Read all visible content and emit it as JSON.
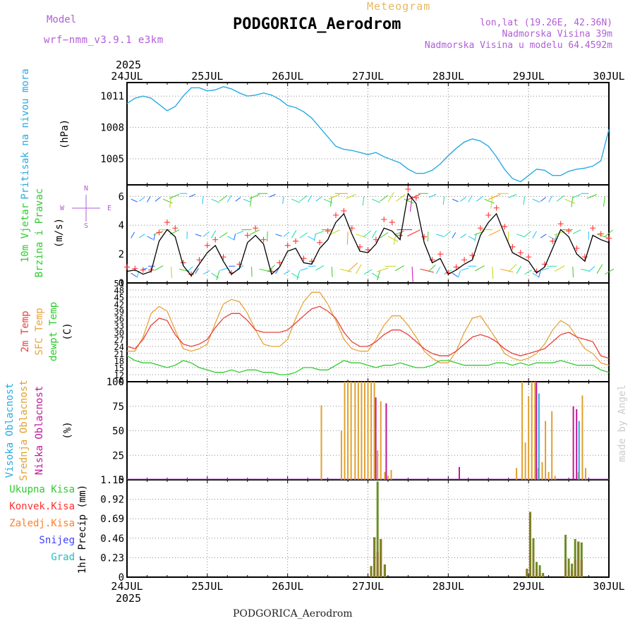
{
  "header": {
    "model_label": "Model",
    "model_name": "wrf−nmm_v3.9.1  e3km",
    "product": "Meteogram",
    "station": "PODGORICA_Aerodrom",
    "lonlat": "lon,lat (19.26E, 42.36N)",
    "elev": "Nadmorska Visina 39m",
    "elev_model": "Nadmorska Visina u modelu 64.4592m"
  },
  "footer": {
    "station": "PODGORICA_Aerodrom",
    "credit": "made by Angel"
  },
  "colors": {
    "pressure": "#29abe2",
    "black": "#000000",
    "temp2m": "#e8413a",
    "sfc": "#e6a43c",
    "dewpt": "#2ecc2e",
    "purple": "#b05ed8",
    "high": "#29abe2",
    "mid": "#e0a030",
    "low": "#c0189a",
    "total": "#2ecc2e",
    "conv": "#ff3030",
    "frozen": "#ff7f27",
    "snow": "#4040ff",
    "hail": "#20c0c0",
    "olive": "#6b8e23",
    "grid": "#888888"
  },
  "chart_data": [
    {
      "type": "line",
      "title": "Pritisak na nivou mora",
      "ylabel": "(hPa)",
      "ylabels": [
        "1011",
        "1008",
        "1005"
      ],
      "yticks": [
        1011,
        1008,
        1005
      ],
      "ylim": [
        1002.5,
        1012.3
      ],
      "x_days": [
        0,
        0.1,
        0.2,
        0.3,
        0.4,
        0.5,
        0.6,
        0.7,
        0.8,
        0.9,
        1,
        1.1,
        1.2,
        1.3,
        1.4,
        1.5,
        1.6,
        1.7,
        1.8,
        1.9,
        2,
        2.1,
        2.2,
        2.3,
        2.4,
        2.5,
        2.6,
        2.7,
        2.8,
        2.9,
        3,
        3.1,
        3.2,
        3.3,
        3.4,
        3.5,
        3.6,
        3.7,
        3.8,
        3.9,
        4,
        4.1,
        4.2,
        4.3,
        4.4,
        4.5,
        4.6,
        4.7,
        4.8,
        4.9,
        5,
        5.1,
        5.2,
        5.3,
        5.4,
        5.5,
        5.6,
        5.7,
        5.8,
        5.9,
        6
      ],
      "values": [
        1010.3,
        1010.8,
        1011.0,
        1010.8,
        1010.2,
        1009.6,
        1010.0,
        1011.0,
        1011.8,
        1011.8,
        1011.5,
        1011.6,
        1011.9,
        1011.7,
        1011.3,
        1011.0,
        1011.1,
        1011.3,
        1011.1,
        1010.7,
        1010.1,
        1009.9,
        1009.5,
        1008.9,
        1008.0,
        1007.1,
        1006.2,
        1005.9,
        1005.8,
        1005.6,
        1005.4,
        1005.6,
        1005.2,
        1004.9,
        1004.6,
        1004.0,
        1003.6,
        1003.6,
        1003.9,
        1004.5,
        1005.3,
        1006.0,
        1006.6,
        1006.9,
        1006.7,
        1006.2,
        1005.2,
        1004.0,
        1003.1,
        1002.8,
        1003.4,
        1004.0,
        1003.9,
        1003.4,
        1003.4,
        1003.8,
        1004.0,
        1004.1,
        1004.3,
        1004.8,
        1007.8
      ]
    },
    {
      "type": "line",
      "title": "10m Vjetar",
      "subtitle": "Brzina i Pravac",
      "ylabel": "(m/s)",
      "compass": {
        "n": "N",
        "s": "S",
        "w": "W",
        "e": "E"
      },
      "ylabels": [
        "6",
        "4",
        "2",
        "0"
      ],
      "yticks": [
        6,
        4,
        2,
        0
      ],
      "ylim": [
        0,
        6.8
      ],
      "x_days": [
        0,
        0.1,
        0.2,
        0.3,
        0.4,
        0.5,
        0.6,
        0.7,
        0.8,
        0.9,
        1,
        1.1,
        1.2,
        1.3,
        1.4,
        1.5,
        1.6,
        1.7,
        1.8,
        1.9,
        2,
        2.1,
        2.2,
        2.3,
        2.4,
        2.5,
        2.6,
        2.7,
        2.8,
        2.9,
        3,
        3.1,
        3.2,
        3.3,
        3.4,
        3.5,
        3.6,
        3.7,
        3.8,
        3.9,
        4,
        4.1,
        4.2,
        4.3,
        4.4,
        4.5,
        4.6,
        4.7,
        4.8,
        4.9,
        5,
        5.1,
        5.2,
        5.3,
        5.4,
        5.5,
        5.6,
        5.7,
        5.8,
        5.9,
        6
      ],
      "speed": [
        0.8,
        0.9,
        0.6,
        0.8,
        2.9,
        3.7,
        3.2,
        1.2,
        0.5,
        1.3,
        2.1,
        2.6,
        1.5,
        0.6,
        1.0,
        2.8,
        3.3,
        2.7,
        0.6,
        1.1,
        2.2,
        2.4,
        1.4,
        1.3,
        2.4,
        3.0,
        4.2,
        4.8,
        3.4,
        2.2,
        2.1,
        2.7,
        3.8,
        3.6,
        3.0,
        6.2,
        5.5,
        2.8,
        1.4,
        1.7,
        0.6,
        0.9,
        1.3,
        1.6,
        3.3,
        4.2,
        4.8,
        3.4,
        2.1,
        1.8,
        1.5,
        0.7,
        1.1,
        2.4,
        3.7,
        3.2,
        2.0,
        1.5,
        3.3,
        3.0,
        2.8
      ],
      "gust": [
        1.1,
        1.0,
        0.9,
        0.9,
        3.5,
        4.2,
        3.8,
        1.4,
        0.6,
        1.6,
        2.6,
        3.0,
        1.8,
        0.7,
        1.3,
        3.3,
        3.8,
        3.0,
        0.8,
        1.4,
        2.6,
        2.9,
        1.7,
        1.5,
        2.8,
        3.6,
        4.7,
        5.0,
        3.8,
        2.5,
        2.3,
        3.0,
        4.4,
        4.2,
        3.3,
        6.5,
        5.9,
        3.2,
        1.6,
        2.0,
        0.7,
        1.1,
        1.6,
        1.9,
        3.8,
        4.7,
        5.2,
        3.9,
        2.5,
        2.1,
        1.8,
        0.8,
        1.3,
        2.9,
        4.1,
        3.6,
        2.4,
        1.8,
        3.8,
        3.4,
        3.1
      ]
    },
    {
      "type": "line",
      "title": "2m Temp",
      "titles": [
        "2m Temp",
        "SFC Temp",
        "dewpt Temp"
      ],
      "ylabel": "(C)",
      "ylabels": [
        "51",
        "48",
        "45",
        "42",
        "39",
        "36",
        "33",
        "30",
        "27",
        "24",
        "21",
        "18",
        "15",
        "12",
        "9"
      ],
      "yticks": [
        51,
        48,
        45,
        42,
        39,
        36,
        33,
        30,
        27,
        24,
        21,
        18,
        15,
        12,
        9
      ],
      "ylim": [
        9,
        51
      ],
      "x_days": [
        0,
        0.1,
        0.2,
        0.3,
        0.4,
        0.5,
        0.6,
        0.7,
        0.8,
        0.9,
        1,
        1.1,
        1.2,
        1.3,
        1.4,
        1.5,
        1.6,
        1.7,
        1.8,
        1.9,
        2,
        2.1,
        2.2,
        2.3,
        2.4,
        2.5,
        2.6,
        2.7,
        2.8,
        2.9,
        3,
        3.1,
        3.2,
        3.3,
        3.4,
        3.5,
        3.6,
        3.7,
        3.8,
        3.9,
        4,
        4.1,
        4.2,
        4.3,
        4.4,
        4.5,
        4.6,
        4.7,
        4.8,
        4.9,
        5,
        5.1,
        5.2,
        5.3,
        5.4,
        5.5,
        5.6,
        5.7,
        5.8,
        5.9,
        6
      ],
      "t2m": [
        24,
        23,
        27,
        33,
        36,
        35,
        29,
        25,
        24,
        25,
        27,
        32,
        36,
        38,
        38,
        35,
        31,
        30,
        30,
        30,
        31,
        34,
        37,
        40,
        41,
        39,
        36,
        30,
        26,
        24,
        24,
        26,
        29,
        31,
        31,
        29,
        26,
        23,
        21,
        20,
        20,
        22,
        25,
        28,
        29,
        28,
        26,
        23,
        21,
        20,
        21,
        22,
        23,
        26,
        29,
        30,
        28,
        27,
        26,
        20,
        19
      ],
      "sfc": [
        22,
        22,
        28,
        38,
        41,
        39,
        31,
        23,
        22,
        23,
        25,
        34,
        42,
        44,
        43,
        38,
        31,
        25,
        24,
        24,
        27,
        36,
        43,
        47,
        47,
        42,
        35,
        27,
        23,
        22,
        22,
        27,
        33,
        37,
        37,
        33,
        28,
        22,
        19,
        17,
        17,
        22,
        30,
        36,
        37,
        32,
        27,
        21,
        19,
        18,
        19,
        21,
        25,
        31,
        35,
        33,
        28,
        23,
        21,
        17,
        16
      ],
      "dewpt": [
        20,
        18,
        17,
        17,
        16,
        15,
        16,
        18,
        17,
        15,
        14,
        13,
        13,
        14,
        13,
        14,
        14,
        13,
        13,
        12,
        12,
        13,
        15,
        15,
        14,
        14,
        16,
        18,
        17,
        17,
        16,
        15,
        16,
        16,
        17,
        16,
        15,
        15,
        16,
        18,
        18,
        17,
        16,
        16,
        16,
        16,
        17,
        17,
        16,
        17,
        16,
        17,
        17,
        17,
        18,
        17,
        16,
        16,
        16,
        14,
        13
      ]
    },
    {
      "type": "bar",
      "titles": [
        "Visoka Oblacnost",
        "Srednja Oblacnost",
        "Niska Oblacnost"
      ],
      "ylabel": "(%)",
      "ylabels": [
        "100",
        "75",
        "50",
        "25",
        "0"
      ],
      "yticks": [
        100,
        75,
        50,
        25,
        0
      ],
      "ylim": [
        0,
        100
      ],
      "mid_x": [
        2.42,
        2.67,
        2.71,
        2.75,
        2.79,
        2.84,
        2.88,
        2.92,
        2.96,
        3.0,
        3.04,
        3.08,
        3.12,
        3.16,
        3.21,
        3.25,
        3.29,
        4.85,
        4.92,
        4.96,
        5.0,
        5.04,
        5.08,
        5.12,
        5.17,
        5.21,
        5.25,
        5.29,
        5.33,
        5.62,
        5.67,
        5.71
      ],
      "mid_v": [
        76,
        50,
        100,
        100,
        100,
        100,
        100,
        100,
        100,
        100,
        100,
        100,
        30,
        80,
        8,
        4,
        10,
        12,
        100,
        38,
        85,
        100,
        100,
        12,
        18,
        60,
        8,
        70,
        4,
        8,
        86,
        12
      ],
      "high_x": [
        5.12,
        5.62
      ],
      "high_v": [
        88,
        60
      ],
      "low_x": [
        3.08,
        3.21,
        4.12,
        5.08,
        5.54,
        5.58
      ],
      "low_v": [
        84,
        78,
        13,
        100,
        75,
        72
      ]
    },
    {
      "type": "bar",
      "titles": [
        "Ukupna Kisa",
        "Konvek.Kisa",
        "Zaledj.Kisa",
        "Snijeg",
        "Grad"
      ],
      "ylabel": "1hr Precip (mm)",
      "ylabels": [
        "1.15",
        "0.92",
        "0.69",
        "0.46",
        "0.23",
        "0"
      ],
      "yticks": [
        1.15,
        0.92,
        0.69,
        0.46,
        0.23,
        0
      ],
      "ylim": [
        0,
        1.15
      ],
      "x_days": [
        3.04,
        3.08,
        3.12,
        3.16,
        3.21,
        4.98,
        5.02,
        5.06,
        5.1,
        5.14,
        5.18,
        5.46,
        5.5,
        5.54,
        5.58,
        5.62,
        5.66
      ],
      "total": [
        0.13,
        0.47,
        1.13,
        0.45,
        0.15,
        0.1,
        0.77,
        0.46,
        0.18,
        0.14,
        0.05,
        0.5,
        0.22,
        0.16,
        0.45,
        0.42,
        0.41
      ],
      "conv": [
        0.13,
        0.47,
        0.3,
        0.45,
        0.15,
        0.1,
        0.77,
        0.3,
        0.1,
        0.05,
        0.02,
        0.2,
        0.1,
        0.08,
        0.2,
        0.42,
        0.2
      ]
    }
  ],
  "axis": {
    "year": "2025",
    "days": [
      "24JUL",
      "25JUL",
      "26JUL",
      "27JUL",
      "28JUL",
      "29JUL",
      "30JUL"
    ],
    "day_index": [
      0,
      1,
      2,
      3,
      4,
      5,
      6
    ]
  }
}
